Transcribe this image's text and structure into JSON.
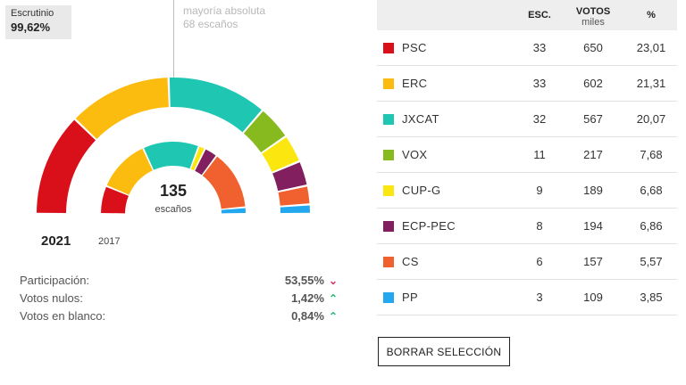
{
  "scrutiny": {
    "label": "Escrutinio",
    "value": "99,62%"
  },
  "majority": {
    "line1": "mayoría absoluta",
    "line2": "68 escaños"
  },
  "hemicycle": {
    "seats": "135",
    "seats_label": "escaños"
  },
  "years": {
    "current": "2021",
    "previous": "2017"
  },
  "stats": [
    {
      "label": "Participación:",
      "value": "53,55%",
      "trend": "down",
      "arrow": "⌄",
      "color": "#d6335f"
    },
    {
      "label": "Votos nulos:",
      "value": "1,42%",
      "trend": "up",
      "arrow": "⌃",
      "color": "#2bb673"
    },
    {
      "label": "Votos en blanco:",
      "value": "0,84%",
      "trend": "up",
      "arrow": "⌃",
      "color": "#2bb673"
    }
  ],
  "table": {
    "headers": {
      "seats": "ESC.",
      "votes": "VOTOS",
      "votes_sub": "miles",
      "pct": "%"
    },
    "parties": [
      {
        "name": "PSC",
        "seats": "33",
        "votes": "650",
        "pct": "23,01",
        "color": "#d90f1a",
        "seats_2017": 17
      },
      {
        "name": "ERC",
        "seats": "33",
        "votes": "602",
        "pct": "21,31",
        "color": "#fcbc0f",
        "seats_2017": 32
      },
      {
        "name": "JXCAT",
        "seats": "32",
        "votes": "567",
        "pct": "20,07",
        "color": "#1fc7b3",
        "seats_2017": 34
      },
      {
        "name": "VOX",
        "seats": "11",
        "votes": "217",
        "pct": "7,68",
        "color": "#86ba1e",
        "seats_2017": 0
      },
      {
        "name": "CUP-G",
        "seats": "9",
        "votes": "189",
        "pct": "6,68",
        "color": "#fbe60f",
        "seats_2017": 4
      },
      {
        "name": "ECP-PEC",
        "seats": "8",
        "votes": "194",
        "pct": "6,86",
        "color": "#811f5f",
        "seats_2017": 8
      },
      {
        "name": "CS",
        "seats": "6",
        "votes": "157",
        "pct": "5,57",
        "color": "#f1612f",
        "seats_2017": 36
      },
      {
        "name": "PP",
        "seats": "3",
        "votes": "109",
        "pct": "3,85",
        "color": "#23a8ef",
        "seats_2017": 4
      }
    ]
  },
  "clear_button": "BORRAR SELECCIÓN"
}
